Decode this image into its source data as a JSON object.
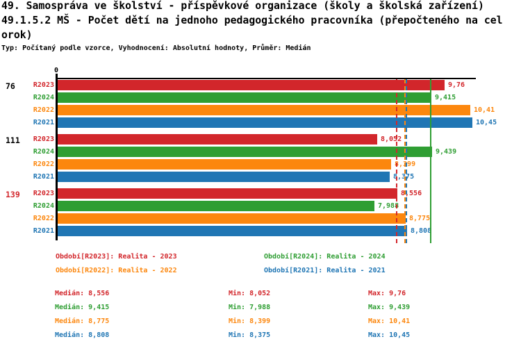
{
  "header": {
    "title_line1": "49. Samospráva ve školství - příspěvkové organizace (školy a školská zařízení)",
    "title_line2": "49.1.5.2 MŠ - Počet dětí na jednoho pedagogického pracovníka (přepočteného na cel",
    "title_line3": "orok)",
    "meta_line": "Typ: Počítaný podle vzorce, Vyhodnocení: Absolutní hodnoty, Průměr: Medián"
  },
  "colors": {
    "r2023": "#d2262b",
    "r2024": "#2f9e33",
    "r2022": "#fc870e",
    "r2021": "#2076b4",
    "axis": "#000000",
    "text": "#000000",
    "highlight_group": "#d2262b"
  },
  "chart_data": {
    "type": "bar",
    "orientation": "horizontal",
    "legend_position": "bottom",
    "grid": false,
    "value_axis": {
      "origin_label": "0",
      "min": 0,
      "max_drawn": 10.56
    },
    "series_order": [
      "R2023",
      "R2024",
      "R2022",
      "R2021"
    ],
    "groups": [
      {
        "label": "76",
        "highlighted": false,
        "values": [
          9.76,
          9.415,
          10.41,
          10.45
        ],
        "displays": [
          "9,76",
          "9,415",
          "10,41",
          "10,45"
        ]
      },
      {
        "label": "111",
        "highlighted": false,
        "values": [
          8.052,
          9.439,
          8.399,
          8.375
        ],
        "displays": [
          "8,052",
          "9,439",
          "8,399",
          "8,375"
        ]
      },
      {
        "label": "139",
        "highlighted": true,
        "values": [
          8.556,
          7.988,
          8.775,
          8.808
        ],
        "displays": [
          "8,556",
          "7,988",
          "8,775",
          "8,808"
        ]
      }
    ],
    "median_lines": [
      {
        "series": "R2023",
        "value": 8.556,
        "dashed": true
      },
      {
        "series": "R2022",
        "value": 8.775,
        "dashed": true
      },
      {
        "series": "R2021",
        "value": 8.808,
        "dashed": true
      },
      {
        "series": "R2024",
        "value": 9.415,
        "dashed": false
      }
    ]
  },
  "legend": {
    "items": [
      {
        "series": "R2023",
        "label": "Období[R2023]: Realita - 2023"
      },
      {
        "series": "R2024",
        "label": "Období[R2024]: Realita - 2024"
      },
      {
        "series": "R2022",
        "label": "Období[R2022]: Realita - 2022"
      },
      {
        "series": "R2021",
        "label": "Období[R2021]: Realita - 2021"
      }
    ]
  },
  "stats": {
    "rows": [
      {
        "series": "R2023",
        "median": "Medián: 8,556",
        "min": "Min: 8,052",
        "max": "Max: 9,76"
      },
      {
        "series": "R2024",
        "median": "Medián: 9,415",
        "min": "Min: 7,988",
        "max": "Max: 9,439"
      },
      {
        "series": "R2022",
        "median": "Medián: 8,775",
        "min": "Min: 8,399",
        "max": "Max: 10,41"
      },
      {
        "series": "R2021",
        "median": "Medián: 8,808",
        "min": "Min: 8,375",
        "max": "Max: 10,45"
      }
    ]
  }
}
